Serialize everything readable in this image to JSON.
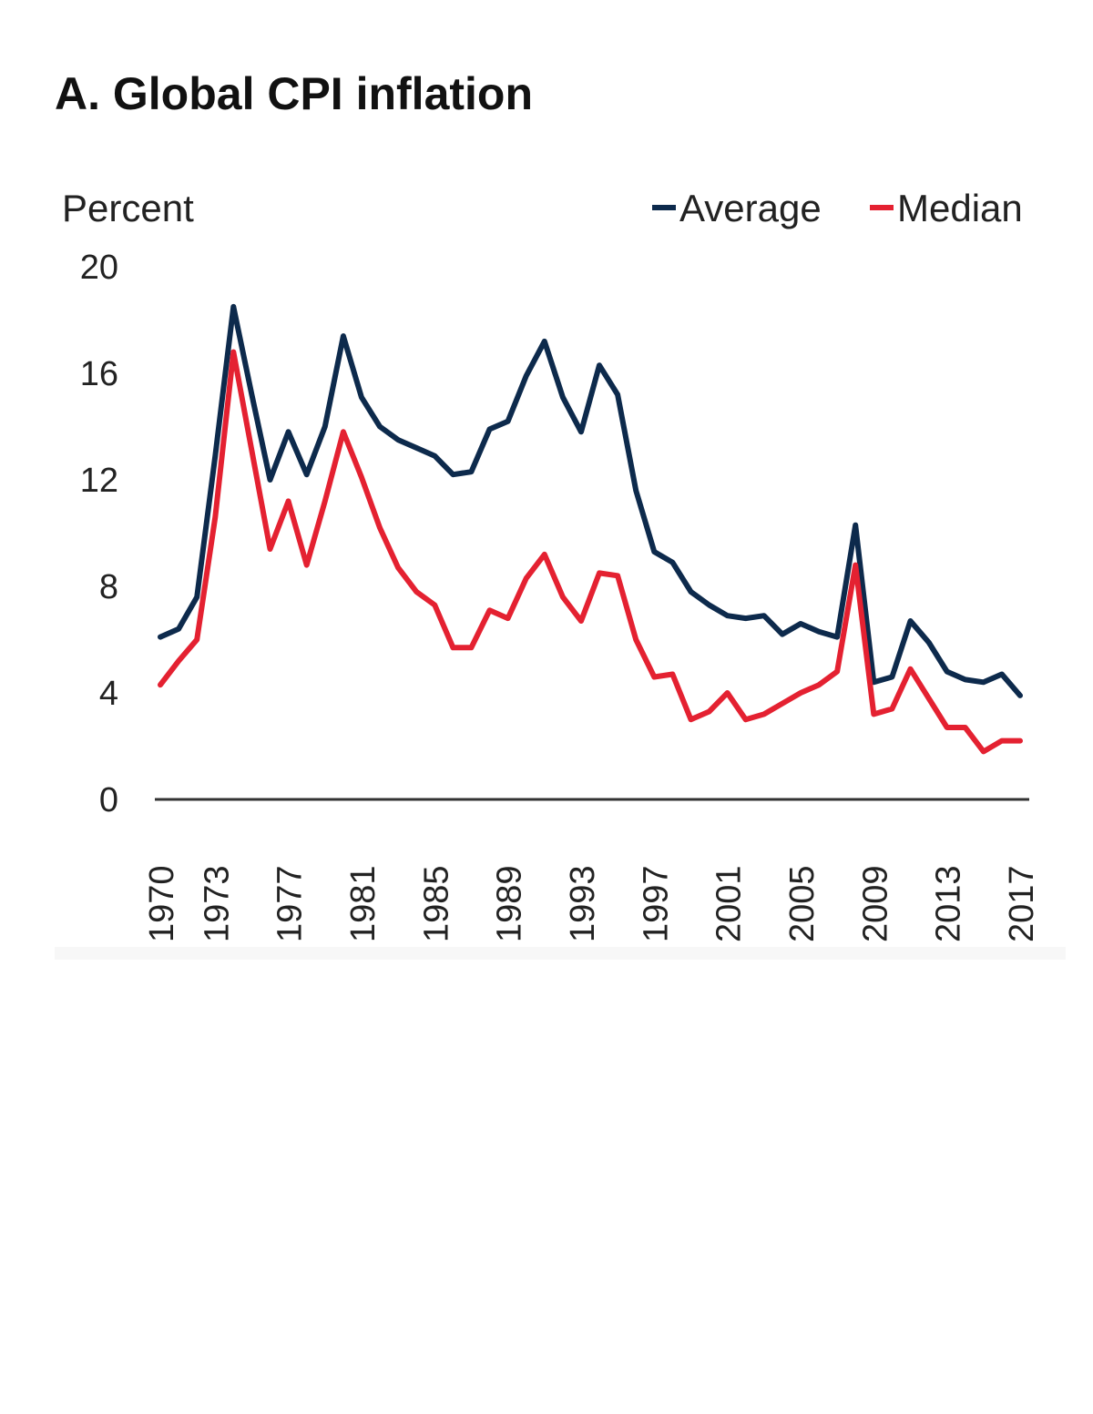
{
  "chart_data": {
    "type": "line",
    "title": "A. Global CPI inflation",
    "ylabel": "Percent",
    "xlabel": "",
    "ylim": [
      0,
      20
    ],
    "yticks": [
      0,
      4,
      8,
      12,
      16,
      20
    ],
    "xlim": [
      1970,
      2017
    ],
    "xticks": [
      1970,
      1973,
      1977,
      1981,
      1985,
      1989,
      1993,
      1997,
      2001,
      2005,
      2009,
      2013,
      2017
    ],
    "grid": false,
    "legend_position": "top-right",
    "x": [
      1970,
      1971,
      1972,
      1973,
      1974,
      1975,
      1976,
      1977,
      1978,
      1979,
      1980,
      1981,
      1982,
      1983,
      1984,
      1985,
      1986,
      1987,
      1988,
      1989,
      1990,
      1991,
      1992,
      1993,
      1994,
      1995,
      1996,
      1997,
      1998,
      1999,
      2000,
      2001,
      2002,
      2003,
      2004,
      2005,
      2006,
      2007,
      2008,
      2009,
      2010,
      2011,
      2012,
      2013,
      2014,
      2015,
      2016,
      2017
    ],
    "series": [
      {
        "name": "Average",
        "color": "#0d2a4c",
        "values": [
          6.1,
          6.4,
          7.6,
          12.9,
          18.5,
          15.2,
          12.0,
          13.8,
          12.2,
          14.0,
          17.4,
          15.1,
          14.0,
          13.5,
          13.2,
          12.9,
          12.2,
          12.3,
          13.9,
          14.2,
          15.9,
          17.2,
          15.1,
          13.8,
          16.3,
          15.2,
          11.6,
          9.3,
          8.9,
          7.8,
          7.3,
          6.9,
          6.8,
          6.9,
          6.2,
          6.6,
          6.3,
          6.1,
          10.3,
          4.4,
          4.6,
          6.7,
          5.9,
          4.8,
          4.5,
          4.4,
          4.7,
          3.9
        ]
      },
      {
        "name": "Median",
        "color": "#e42131",
        "values": [
          4.3,
          5.2,
          6.0,
          10.6,
          16.8,
          13.1,
          9.4,
          11.2,
          8.8,
          11.2,
          13.8,
          12.1,
          10.2,
          8.7,
          7.8,
          7.3,
          5.7,
          5.7,
          7.1,
          6.8,
          8.3,
          9.2,
          7.6,
          6.7,
          8.5,
          8.4,
          6.0,
          4.6,
          4.7,
          3.0,
          3.3,
          4.0,
          3.0,
          3.2,
          3.6,
          4.0,
          4.3,
          4.8,
          8.8,
          3.2,
          3.4,
          4.9,
          3.8,
          2.7,
          2.7,
          1.8,
          2.2,
          2.2
        ]
      }
    ]
  }
}
